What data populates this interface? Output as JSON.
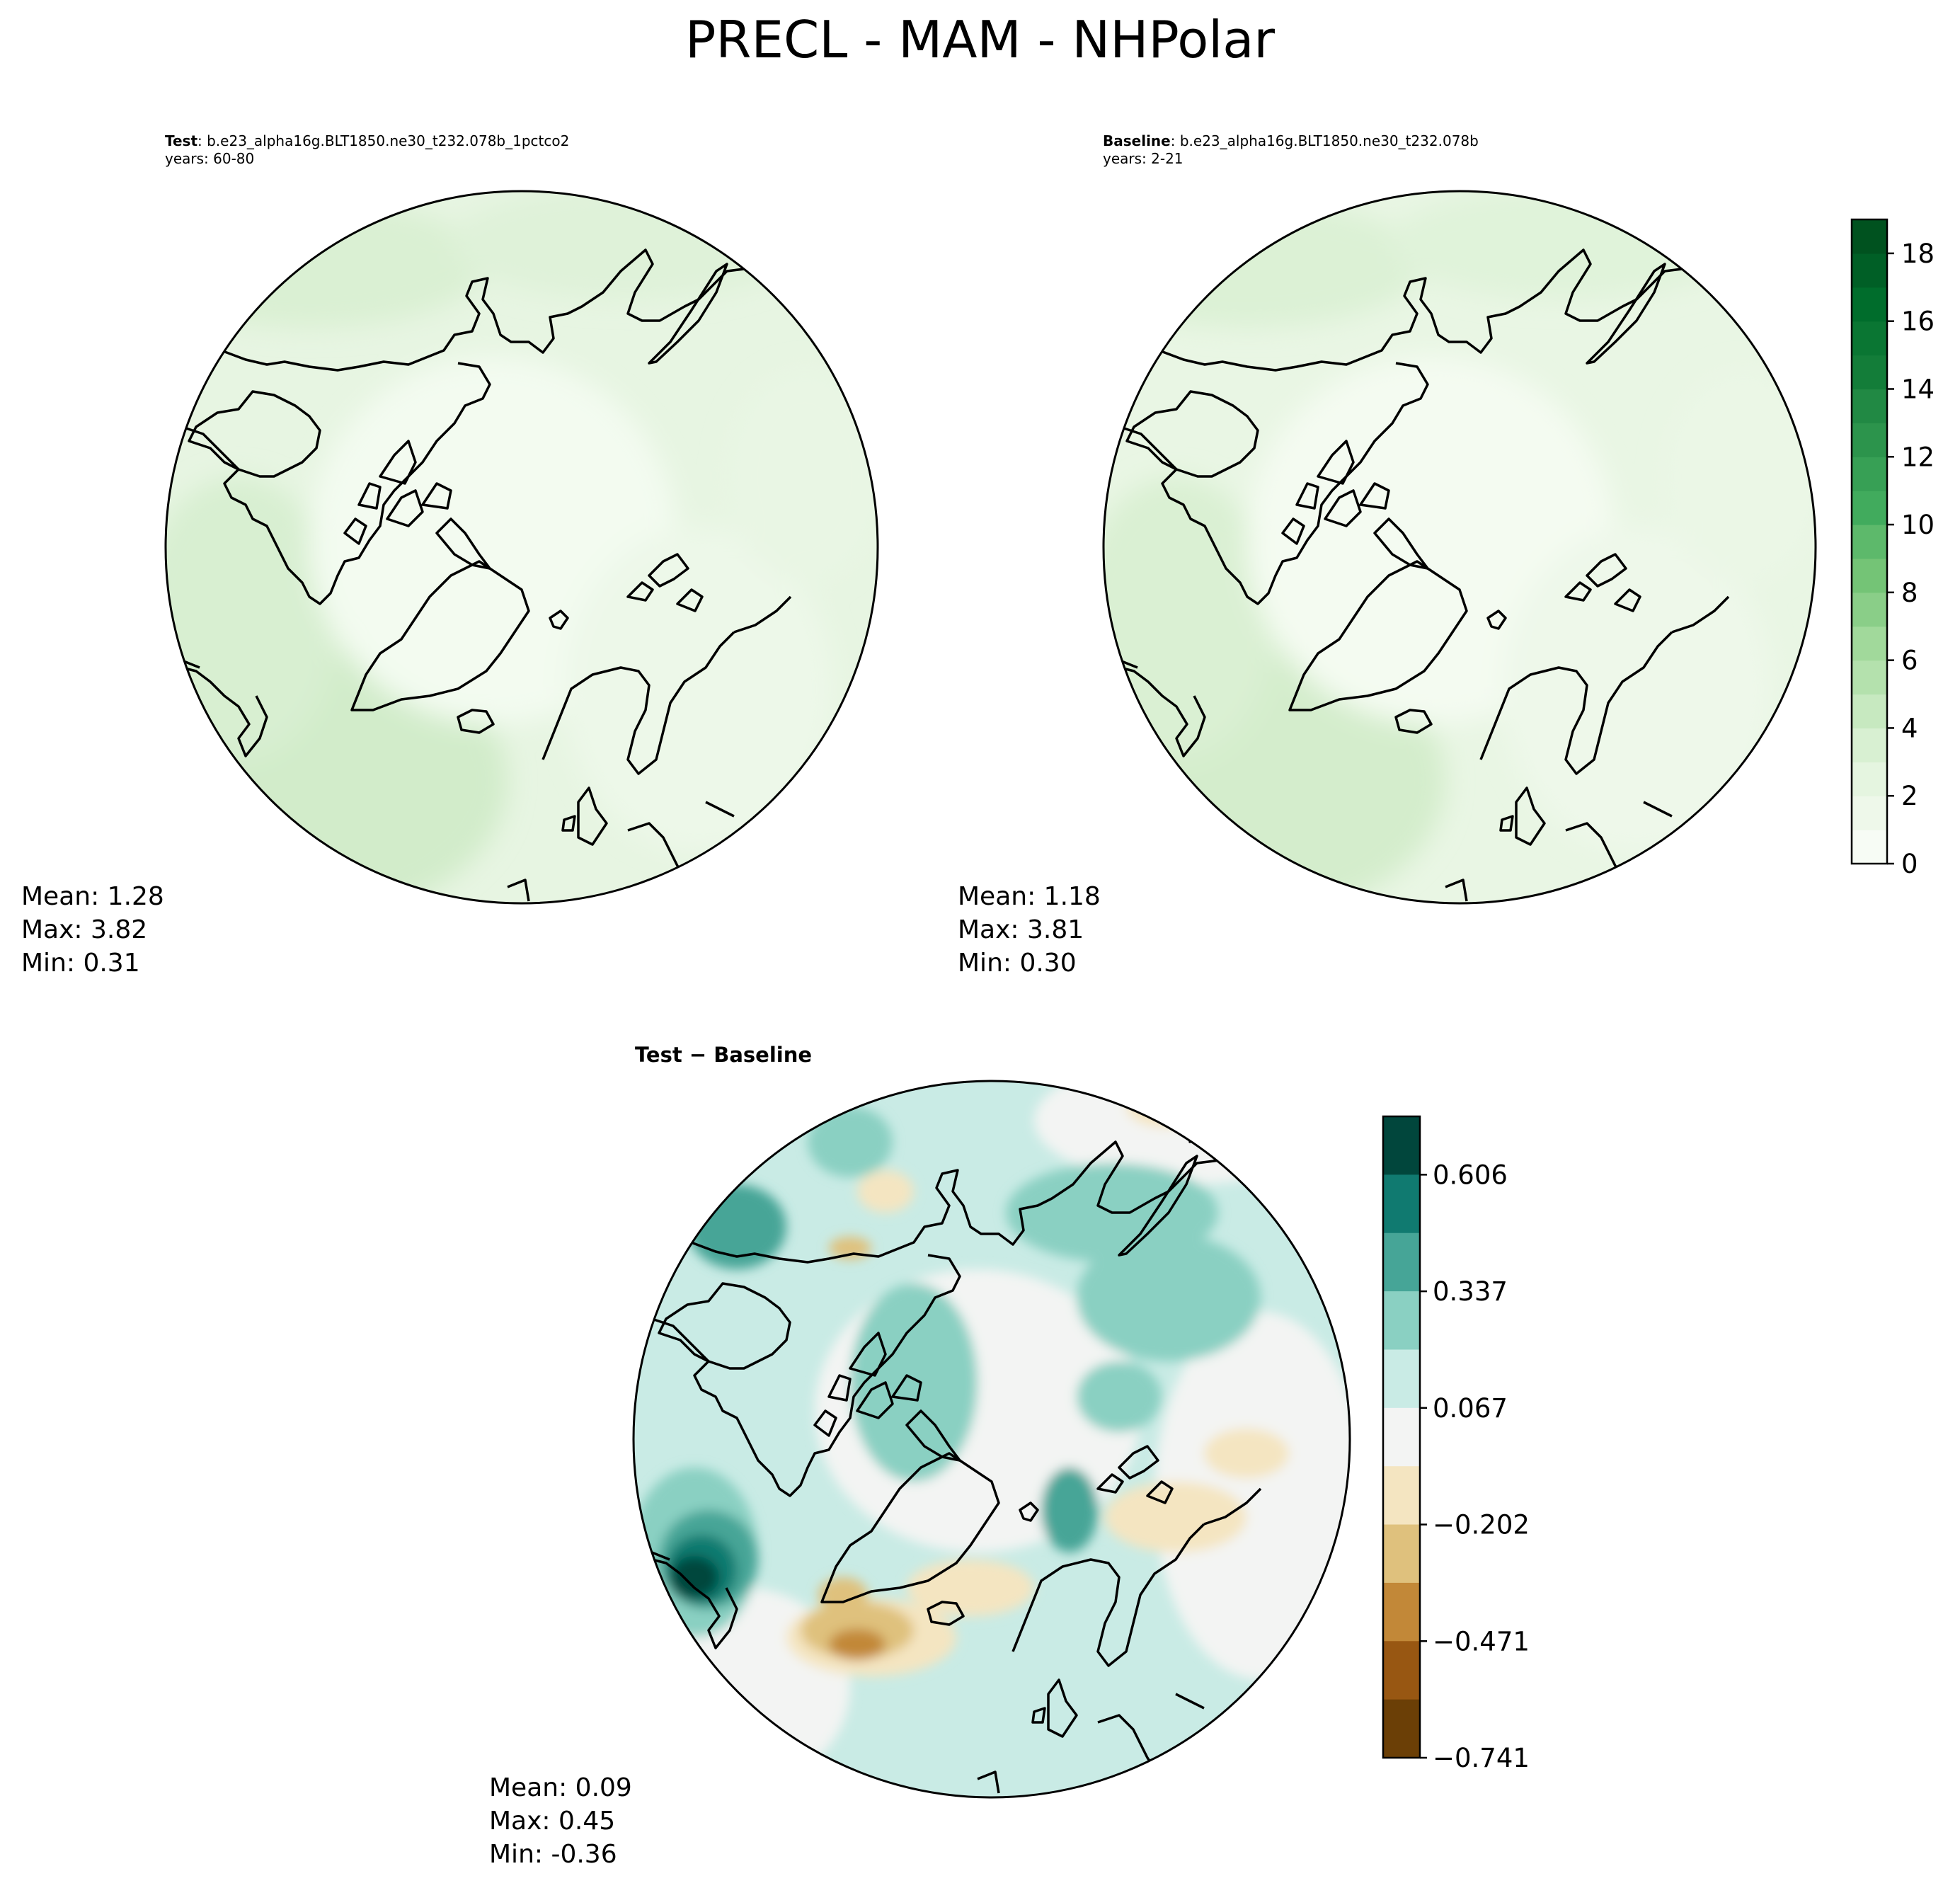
{
  "figure": {
    "title": "PRECL - MAM - NHPolar"
  },
  "panels": {
    "test": {
      "label": "Test",
      "case": ": b.e23_alpha16g.BLT1850.ne30_t232.078b_1pctco2",
      "years": "years: 60-80",
      "mean": "Mean:  1.28",
      "max": "Max:  3.82",
      "min": "Min:  0.31"
    },
    "baseline": {
      "label": "Baseline",
      "case": ": b.e23_alpha16g.BLT1850.ne30_t232.078b",
      "years": "years: 2-21",
      "mean": "Mean:  1.18",
      "max": "Max:  3.81",
      "min": "Min:  0.30"
    },
    "diff": {
      "title": "Test − Baseline",
      "mean": "Mean:  0.09",
      "max": "Max:  0.45",
      "min": "Min: -0.36"
    }
  },
  "chart_data": [
    {
      "type": "heatmap",
      "panel": "test",
      "projection": "north polar stereographic",
      "stats": {
        "mean": 1.28,
        "max": 3.82,
        "min": 0.31
      }
    },
    {
      "type": "heatmap",
      "panel": "baseline",
      "projection": "north polar stereographic",
      "stats": {
        "mean": 1.18,
        "max": 3.81,
        "min": 0.3
      }
    },
    {
      "type": "heatmap",
      "panel": "difference",
      "projection": "north polar stereographic",
      "stats": {
        "mean": 0.09,
        "max": 0.45,
        "min": -0.36
      }
    },
    {
      "type": "colorbar",
      "for": "test and baseline",
      "range": [
        0,
        19
      ],
      "levels": [
        0,
        1,
        2,
        3,
        4,
        5,
        6,
        7,
        8,
        9,
        10,
        11,
        12,
        13,
        14,
        15,
        16,
        17,
        18,
        19
      ],
      "ticks": [
        0,
        2,
        4,
        6,
        8,
        10,
        12,
        14,
        16,
        18
      ],
      "tick_labels": [
        "0",
        "2",
        "4",
        "6",
        "8",
        "10",
        "12",
        "14",
        "16",
        "18"
      ],
      "colors": [
        "#f7fcf5",
        "#eef8ea",
        "#e5f5e0",
        "#d8f0d2",
        "#c7e9c0",
        "#b4e1ad",
        "#a1d99b",
        "#8ace88",
        "#74c476",
        "#5db96b",
        "#41ab5d",
        "#37a055",
        "#2c944c",
        "#218944",
        "#137d39",
        "#0a7633",
        "#006d2c",
        "#005f26",
        "#00521f"
      ]
    },
    {
      "type": "colorbar",
      "for": "difference",
      "ticks": [
        0.606,
        0.337,
        0.067,
        -0.202,
        -0.471,
        -0.741
      ],
      "tick_labels": [
        "0.606",
        "0.337",
        "0.067",
        "−0.202",
        "−0.471",
        "−0.741"
      ],
      "colors_top_to_bottom": [
        "#01463c",
        "#107a70",
        "#46a597",
        "#8ad0c2",
        "#c9ebe5",
        "#f3f4f3",
        "#f4e5c1",
        "#dfc17d",
        "#c28838",
        "#985712",
        "#6b3f06"
      ]
    }
  ]
}
